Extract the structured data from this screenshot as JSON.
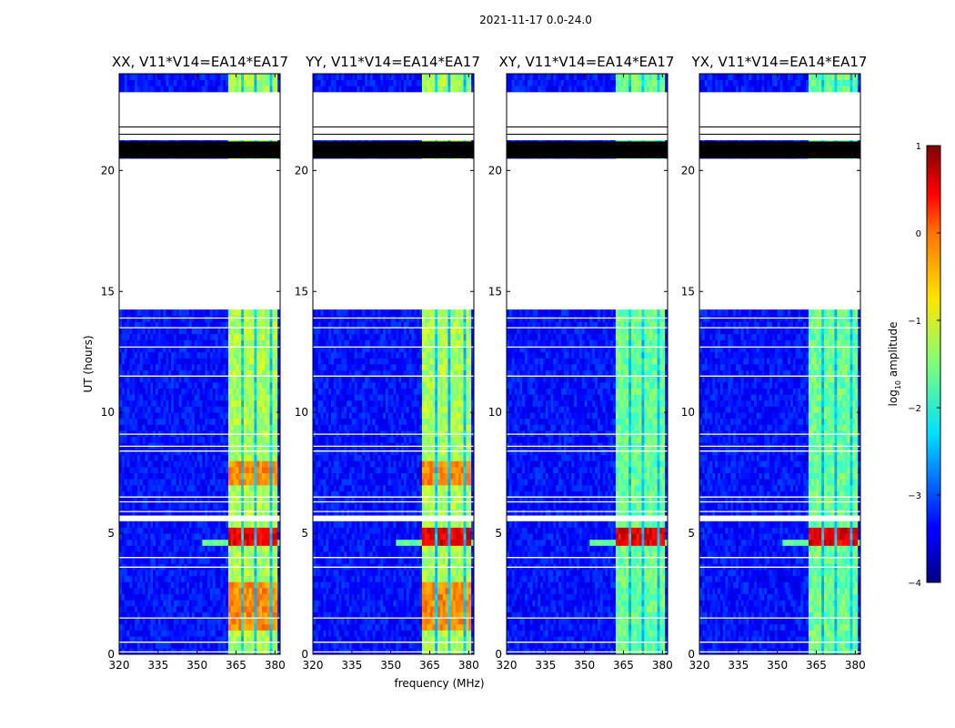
{
  "chart_data": {
    "type": "heatmap",
    "suptitle": "2021-11-17 0.0-24.0",
    "xlabel": "frequency (MHz)",
    "ylabel": "UT (hours)",
    "xlim": [
      320,
      382
    ],
    "ylim": [
      0,
      24
    ],
    "xticks": [
      320,
      335,
      350,
      365,
      380
    ],
    "yticks": [
      0,
      5,
      10,
      15,
      20
    ],
    "colorbar": {
      "label": "log10 amplitude",
      "label_main": "log",
      "label_sub": "10",
      "label_tail": " amplitude",
      "range": [
        -4,
        1
      ],
      "ticks": [
        1,
        0,
        -1,
        -2,
        -3,
        -4
      ],
      "tick_labels": [
        "1",
        "0",
        "−1",
        "−2",
        "−3",
        "−4"
      ],
      "colormap": "jet"
    },
    "panels": [
      {
        "title": "XX, V11*V14=EA14*EA17",
        "pol": "XX"
      },
      {
        "title": "YY, V11*V14=EA14*EA17",
        "pol": "YY"
      },
      {
        "title": "XY, V11*V14=EA14*EA17",
        "pol": "XY"
      },
      {
        "title": "YX, V11*V14=EA14*EA17",
        "pol": "YX"
      }
    ],
    "flagged_ut_ranges_hours": [
      [
        14.35,
        20.5
      ],
      [
        21.2,
        23.3
      ],
      [
        5.55,
        5.8
      ],
      [
        4.15,
        4.35
      ]
    ],
    "rfi_band_mhz": [
      362,
      381
    ],
    "rfi_channel_gaps_mhz": [
      [
        367.2,
        368.2
      ],
      [
        372.4,
        373.4
      ],
      [
        377.6,
        378.6
      ]
    ],
    "levels_log10": {
      "background": -3.3,
      "rfi_XX_YY": -1.3,
      "rfi_XY_YX": -1.6,
      "strong_rfi_4_5h": 0.8,
      "broadband_4_6h": -1.8
    }
  }
}
